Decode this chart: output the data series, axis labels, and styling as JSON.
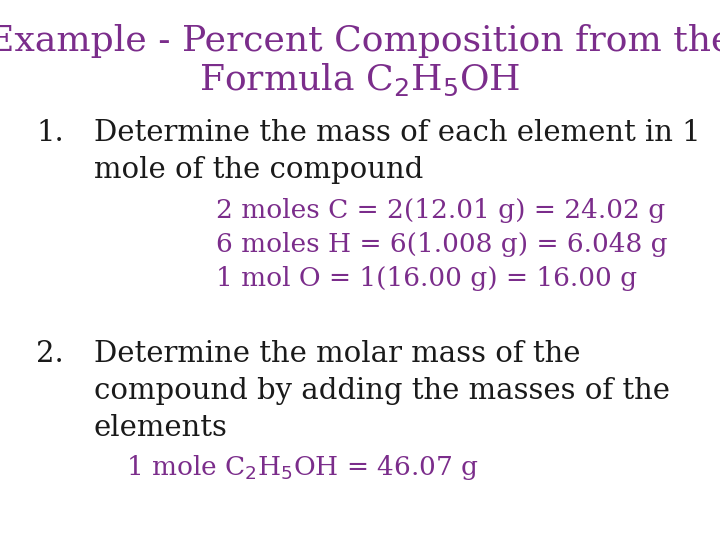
{
  "background_color": "#ffffff",
  "purple_color": "#7B2D8B",
  "black_color": "#1a1a1a",
  "title_line1": "Example - Percent Composition from the",
  "title_line2": "Formula C$_2$H$_5$OH",
  "item1_num": "1.",
  "item1_main_line1": "Determine the mass of each element in 1",
  "item1_main_line2": "mole of the compound",
  "item1_detail1": "2 moles C = 2(12.01 g) = 24.02 g",
  "item1_detail2": "6 moles H = 6(1.008 g) = 6.048 g",
  "item1_detail3": "1 mol O = 1(16.00 g) = 16.00 g",
  "item2_num": "2.",
  "item2_main_line1": "Determine the molar mass of the",
  "item2_main_line2": "compound by adding the masses of the",
  "item2_main_line3": "elements",
  "item2_detail": "1 mole C$_2$H$_5$OH = 46.07 g",
  "font_size_title": 26,
  "font_size_body": 21,
  "font_size_detail": 19
}
